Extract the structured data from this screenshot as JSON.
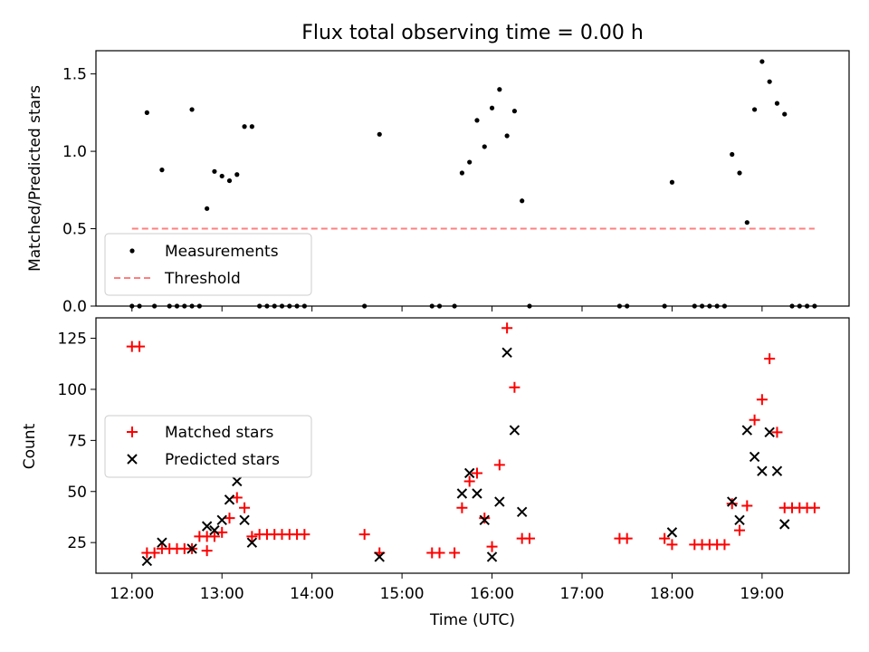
{
  "chart_data": [
    {
      "type": "scatter",
      "title": "Flux total observing time = 0.00 h",
      "xlabel": "",
      "ylabel": "Matched/Predicted stars",
      "xlim": [
        "11:36",
        "19:58"
      ],
      "ylim": [
        0,
        1.65
      ],
      "yticks": [
        0.0,
        0.5,
        1.0,
        1.5
      ],
      "ytick_labels": [
        "0.0",
        "0.5",
        "1.0",
        "1.5"
      ],
      "xtick_labels_shown": false,
      "legend": {
        "position": "lower-left",
        "entries": [
          "Measurements",
          "Threshold"
        ]
      },
      "series": [
        {
          "name": "Measurements",
          "marker": "dot",
          "color": "#000000",
          "points": [
            [
              "12:00",
              0
            ],
            [
              "12:05",
              0
            ],
            [
              "12:10",
              1.25
            ],
            [
              "12:15",
              0
            ],
            [
              "12:20",
              0.88
            ],
            [
              "12:25",
              0
            ],
            [
              "12:30",
              0
            ],
            [
              "12:35",
              0
            ],
            [
              "12:40",
              0
            ],
            [
              "12:40",
              1.27
            ],
            [
              "12:45",
              0
            ],
            [
              "12:50",
              0.63
            ],
            [
              "12:55",
              0.87
            ],
            [
              "13:00",
              0.84
            ],
            [
              "13:05",
              0.81
            ],
            [
              "13:10",
              0.85
            ],
            [
              "13:15",
              1.16
            ],
            [
              "13:20",
              1.16
            ],
            [
              "13:25",
              0
            ],
            [
              "13:30",
              0
            ],
            [
              "13:35",
              0
            ],
            [
              "13:40",
              0
            ],
            [
              "13:45",
              0
            ],
            [
              "13:50",
              0
            ],
            [
              "13:55",
              0
            ],
            [
              "14:35",
              0
            ],
            [
              "14:45",
              1.11
            ],
            [
              "15:20",
              0
            ],
            [
              "15:25",
              0
            ],
            [
              "15:35",
              0
            ],
            [
              "15:40",
              0.86
            ],
            [
              "15:45",
              0.93
            ],
            [
              "15:50",
              1.2
            ],
            [
              "15:55",
              1.03
            ],
            [
              "16:00",
              1.28
            ],
            [
              "16:05",
              1.4
            ],
            [
              "16:10",
              1.1
            ],
            [
              "16:15",
              1.26
            ],
            [
              "16:20",
              0.68
            ],
            [
              "16:25",
              0
            ],
            [
              "17:25",
              0
            ],
            [
              "17:30",
              0
            ],
            [
              "17:55",
              0
            ],
            [
              "18:00",
              0.8
            ],
            [
              "18:15",
              0
            ],
            [
              "18:20",
              0
            ],
            [
              "18:25",
              0
            ],
            [
              "18:30",
              0
            ],
            [
              "18:35",
              0
            ],
            [
              "18:40",
              0.98
            ],
            [
              "18:45",
              0.86
            ],
            [
              "18:50",
              0.54
            ],
            [
              "18:55",
              1.27
            ],
            [
              "19:00",
              1.58
            ],
            [
              "19:05",
              1.45
            ],
            [
              "19:10",
              1.31
            ],
            [
              "19:15",
              1.24
            ],
            [
              "19:20",
              0
            ],
            [
              "19:25",
              0
            ],
            [
              "19:30",
              0
            ],
            [
              "19:35",
              0
            ]
          ]
        },
        {
          "name": "Threshold",
          "line": "dashed",
          "color": "#ff7f7f",
          "points": [
            [
              "12:00",
              0.5
            ],
            [
              "19:35",
              0.5
            ]
          ]
        }
      ]
    },
    {
      "type": "scatter",
      "title": "",
      "xlabel": "Time (UTC)",
      "ylabel": "Count",
      "xlim": [
        "11:36",
        "19:58"
      ],
      "ylim": [
        10,
        135
      ],
      "yticks": [
        25,
        50,
        75,
        100,
        125
      ],
      "ytick_labels": [
        "25",
        "50",
        "75",
        "100",
        "125"
      ],
      "xticks": [
        "12:00",
        "13:00",
        "14:00",
        "15:00",
        "16:00",
        "17:00",
        "18:00",
        "19:00"
      ],
      "xtick_labels": [
        "12:00",
        "13:00",
        "14:00",
        "15:00",
        "16:00",
        "17:00",
        "18:00",
        "19:00"
      ],
      "legend": {
        "position": "center-left",
        "entries": [
          "Matched stars",
          "Predicted stars"
        ]
      },
      "series": [
        {
          "name": "Matched stars",
          "marker": "plus",
          "color": "#ff0000",
          "points": [
            [
              "12:00",
              121
            ],
            [
              "12:05",
              121
            ],
            [
              "12:10",
              20
            ],
            [
              "12:15",
              20
            ],
            [
              "12:20",
              22
            ],
            [
              "12:25",
              22
            ],
            [
              "12:30",
              22
            ],
            [
              "12:35",
              22
            ],
            [
              "12:40",
              22
            ],
            [
              "12:45",
              28
            ],
            [
              "12:50",
              28
            ],
            [
              "12:50",
              21
            ],
            [
              "12:55",
              28
            ],
            [
              "13:00",
              30
            ],
            [
              "13:05",
              37
            ],
            [
              "13:10",
              47
            ],
            [
              "13:15",
              42
            ],
            [
              "13:20",
              28
            ],
            [
              "13:25",
              29
            ],
            [
              "13:30",
              29
            ],
            [
              "13:35",
              29
            ],
            [
              "13:40",
              29
            ],
            [
              "13:45",
              29
            ],
            [
              "13:50",
              29
            ],
            [
              "13:55",
              29
            ],
            [
              "14:35",
              29
            ],
            [
              "14:45",
              20
            ],
            [
              "15:20",
              20
            ],
            [
              "15:25",
              20
            ],
            [
              "15:35",
              20
            ],
            [
              "15:40",
              42
            ],
            [
              "15:45",
              55
            ],
            [
              "15:50",
              59
            ],
            [
              "15:55",
              37
            ],
            [
              "16:00",
              23
            ],
            [
              "16:05",
              63
            ],
            [
              "16:10",
              130
            ],
            [
              "16:15",
              101
            ],
            [
              "16:20",
              27
            ],
            [
              "16:25",
              27
            ],
            [
              "17:25",
              27
            ],
            [
              "17:30",
              27
            ],
            [
              "17:55",
              27
            ],
            [
              "18:00",
              24
            ],
            [
              "18:15",
              24
            ],
            [
              "18:20",
              24
            ],
            [
              "18:25",
              24
            ],
            [
              "18:30",
              24
            ],
            [
              "18:35",
              24
            ],
            [
              "18:40",
              44
            ],
            [
              "18:45",
              31
            ],
            [
              "18:50",
              43
            ],
            [
              "18:55",
              85
            ],
            [
              "19:00",
              95
            ],
            [
              "19:05",
              115
            ],
            [
              "19:10",
              79
            ],
            [
              "19:15",
              42
            ],
            [
              "19:20",
              42
            ],
            [
              "19:25",
              42
            ],
            [
              "19:30",
              42
            ],
            [
              "19:35",
              42
            ]
          ]
        },
        {
          "name": "Predicted stars",
          "marker": "x",
          "color": "#000000",
          "points": [
            [
              "12:10",
              16
            ],
            [
              "12:20",
              25
            ],
            [
              "12:40",
              22
            ],
            [
              "12:50",
              33
            ],
            [
              "12:55",
              31
            ],
            [
              "13:00",
              36
            ],
            [
              "13:05",
              46
            ],
            [
              "13:10",
              55
            ],
            [
              "13:15",
              36
            ],
            [
              "13:20",
              25
            ],
            [
              "14:45",
              18
            ],
            [
              "15:40",
              49
            ],
            [
              "15:45",
              59
            ],
            [
              "15:50",
              49
            ],
            [
              "15:55",
              36
            ],
            [
              "16:00",
              18
            ],
            [
              "16:05",
              45
            ],
            [
              "16:10",
              118
            ],
            [
              "16:15",
              80
            ],
            [
              "16:20",
              40
            ],
            [
              "18:00",
              30
            ],
            [
              "18:40",
              45
            ],
            [
              "18:45",
              36
            ],
            [
              "18:50",
              80
            ],
            [
              "18:55",
              67
            ],
            [
              "19:00",
              60
            ],
            [
              "19:05",
              79
            ],
            [
              "19:10",
              60
            ],
            [
              "19:15",
              34
            ]
          ]
        }
      ]
    }
  ]
}
